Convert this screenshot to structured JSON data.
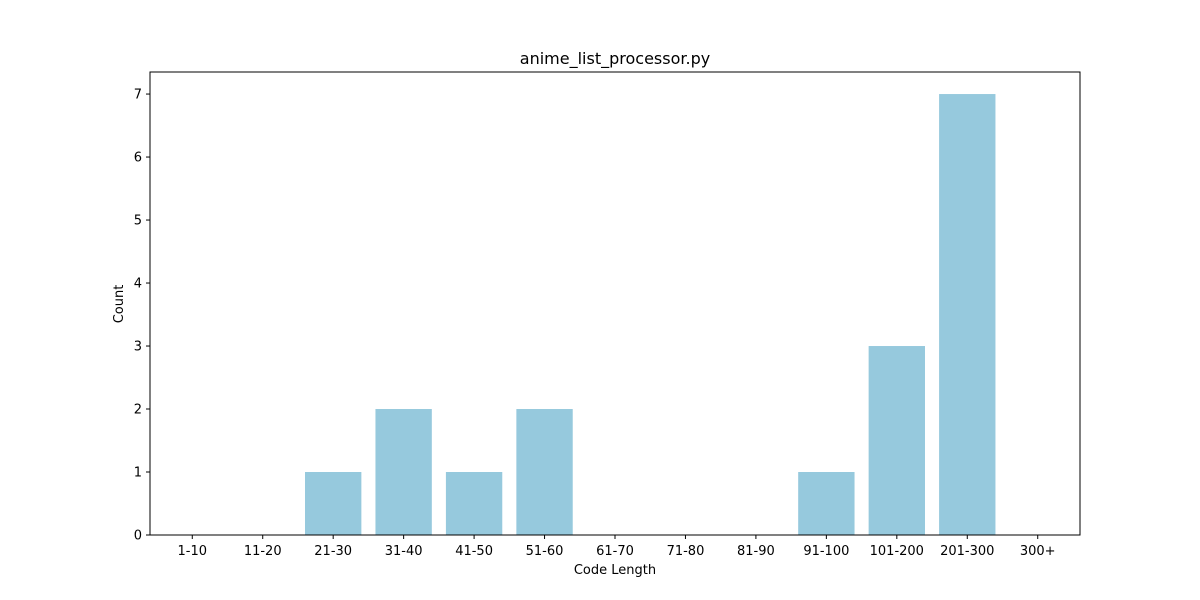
{
  "chart_data": {
    "type": "bar",
    "title": "anime_list_processor.py",
    "xlabel": "Code Length",
    "ylabel": "Count",
    "categories": [
      "1-10",
      "11-20",
      "21-30",
      "31-40",
      "41-50",
      "51-60",
      "61-70",
      "71-80",
      "81-90",
      "91-100",
      "101-200",
      "201-300",
      "300+"
    ],
    "values": [
      0,
      0,
      1,
      2,
      1,
      2,
      0,
      0,
      0,
      1,
      3,
      7,
      0
    ],
    "ylim": [
      0,
      7.35
    ],
    "yticks": [
      0,
      1,
      2,
      3,
      4,
      5,
      6,
      7
    ],
    "grid": false,
    "legend": "none",
    "bar_color": "#96c9dd"
  }
}
